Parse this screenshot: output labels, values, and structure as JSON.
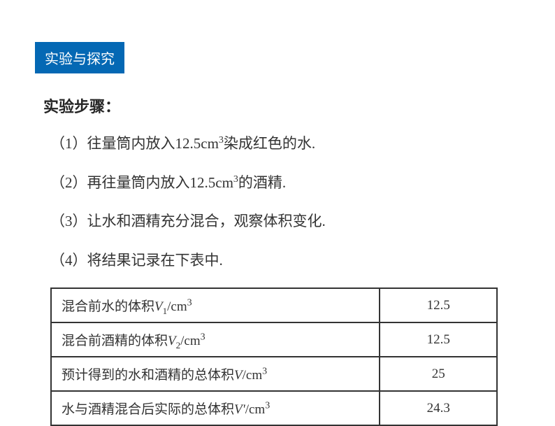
{
  "badge": {
    "label": "实验与探究",
    "bg_color": "#0468b4",
    "text_color": "#ffffff"
  },
  "subtitle": "实验步骤：",
  "steps": [
    {
      "prefix": "（1）",
      "text_a": "往量筒内放入",
      "num": "12.5cm",
      "sup": "3",
      "text_b": "染成红色的水."
    },
    {
      "prefix": "（2）",
      "text_a": "再往量筒内放入",
      "num": "12.5cm",
      "sup": "3",
      "text_b": "的酒精."
    },
    {
      "prefix": "（3）",
      "text_a": "让水和酒精充分混合，观察体积变化.",
      "num": "",
      "sup": "",
      "text_b": ""
    },
    {
      "prefix": "（4）",
      "text_a": "将结果记录在下表中.",
      "num": "",
      "sup": "",
      "text_b": ""
    }
  ],
  "table": {
    "rows": [
      {
        "label_a": "混合前水的体积",
        "var": "V",
        "sub": "1",
        "unit": "/cm",
        "sup": "3",
        "value": "12.5"
      },
      {
        "label_a": "混合前酒精的体积",
        "var": "V",
        "sub": "2",
        "unit": "/cm",
        "sup": "3",
        "value": "12.5"
      },
      {
        "label_a": "预计得到的水和酒精的总体积",
        "var": "V",
        "sub": "",
        "unit": "/cm",
        "sup": "3",
        "value": "25"
      },
      {
        "label_a": "水与酒精混合后实际的总体积",
        "var": "V'",
        "sub": "",
        "unit": "/cm",
        "sup": "3",
        "value": "24.3"
      }
    ],
    "border_color": "#333333",
    "font_size_label": 19,
    "font_size_value": 19
  },
  "colors": {
    "background": "#ffffff",
    "text": "#333333",
    "title_text": "#262626"
  },
  "typography": {
    "badge_fontsize": 20,
    "subtitle_fontsize": 22,
    "step_fontsize": 21
  }
}
